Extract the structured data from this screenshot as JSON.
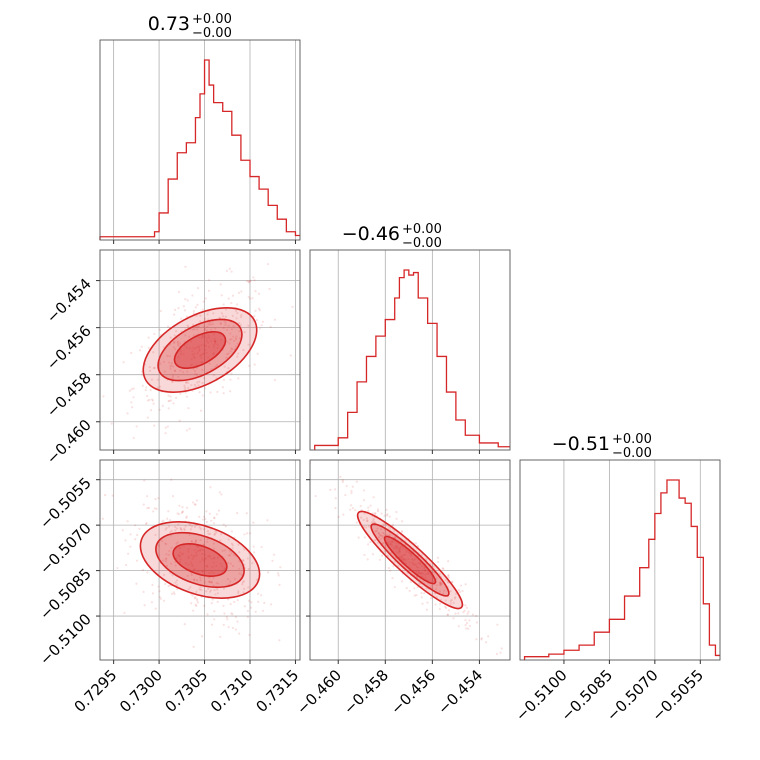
{
  "chart_data": {
    "type": "corner",
    "parameters": [
      {
        "title": "0.73",
        "upper": "+0.00",
        "lower": "−0.00",
        "range": [
          0.72935,
          0.73155
        ],
        "ticks": [
          0.7295,
          0.73,
          0.7305,
          0.731,
          0.7315
        ],
        "tick_labels": [
          "0.7295",
          "0.7300",
          "0.7305",
          "0.7310",
          "0.7315"
        ]
      },
      {
        "title": "−0.46",
        "upper": "+0.00",
        "lower": "−0.00",
        "range": [
          -0.4612,
          -0.4527
        ],
        "ticks": [
          -0.46,
          -0.458,
          -0.456,
          -0.454
        ],
        "tick_labels": [
          "−0.460",
          "−0.458",
          "−0.456",
          "−0.454"
        ]
      },
      {
        "title": "−0.51",
        "upper": "+0.00",
        "lower": "−0.00",
        "range": [
          -0.51145,
          -0.50485
        ],
        "ticks": [
          -0.51,
          -0.5085,
          -0.507,
          -0.5055
        ],
        "tick_labels": [
          "−0.5100",
          "−0.5085",
          "−0.5070",
          "−0.5055"
        ]
      }
    ],
    "histograms": [
      {
        "x": [
          0.72935,
          0.72995,
          0.73,
          0.7301,
          0.7302,
          0.7303,
          0.7304,
          0.73045,
          0.7305,
          0.73055,
          0.7306,
          0.7307,
          0.7308,
          0.7309,
          0.731,
          0.7311,
          0.7312,
          0.7313,
          0.7314,
          0.7315
        ],
        "counts": [
          1,
          5,
          20,
          47,
          68,
          76,
          96,
          115,
          142,
          122,
          108,
          101,
          82,
          62,
          49,
          39,
          26,
          15,
          5,
          2
        ]
      },
      {
        "x": [
          -0.461,
          -0.46,
          -0.4596,
          -0.4592,
          -0.4588,
          -0.4584,
          -0.458,
          -0.4576,
          -0.4574,
          -0.4572,
          -0.457,
          -0.4568,
          -0.4566,
          -0.4562,
          -0.4558,
          -0.4554,
          -0.455,
          -0.4546,
          -0.454,
          -0.4532
        ],
        "counts": [
          2,
          8,
          28,
          52,
          72,
          88,
          101,
          118,
          134,
          140,
          136,
          138,
          118,
          98,
          72,
          44,
          22,
          10,
          4,
          1
        ]
      },
      {
        "x": [
          -0.5113,
          -0.5105,
          -0.51,
          -0.5095,
          -0.509,
          -0.5085,
          -0.508,
          -0.5075,
          -0.5072,
          -0.507,
          -0.5068,
          -0.5066,
          -0.5064,
          -0.5062,
          -0.506,
          -0.5058,
          -0.5056,
          -0.5054,
          -0.5052,
          -0.505
        ],
        "counts": [
          1,
          3,
          6,
          10,
          20,
          30,
          48,
          70,
          92,
          112,
          128,
          138,
          138,
          124,
          120,
          102,
          78,
          42,
          10,
          2
        ]
      }
    ],
    "color": "#d62728",
    "grid": true,
    "legend": "none"
  }
}
